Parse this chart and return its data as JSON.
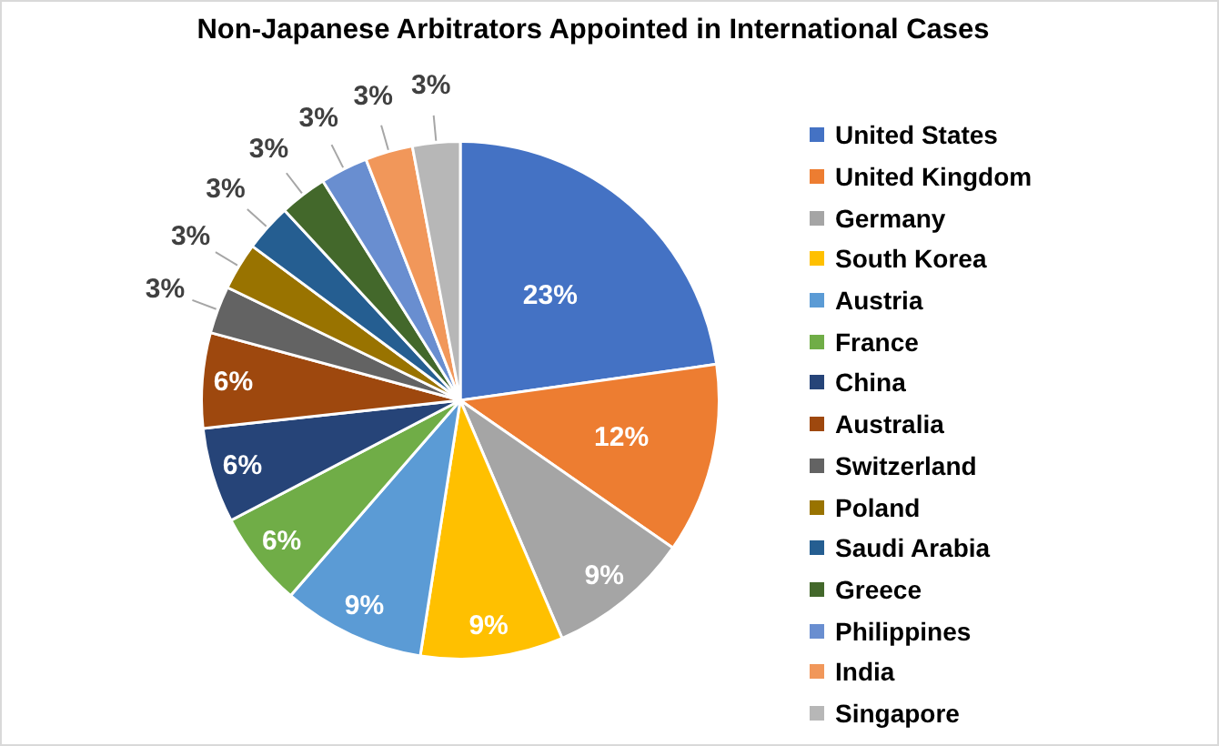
{
  "chart_data": {
    "type": "pie",
    "title": "Non-Japanese Arbitrators Appointed in International Cases",
    "categories": [
      "United States",
      "United Kingdom",
      "Germany",
      "South Korea",
      "Austria",
      "France",
      "China",
      "Australia",
      "Switzerland",
      "Poland",
      "Saudi Arabia",
      "Greece",
      "Philippines",
      "India",
      "Singapore"
    ],
    "values": [
      23,
      12,
      9,
      9,
      9,
      6,
      6,
      6,
      3,
      3,
      3,
      3,
      3,
      3,
      3
    ],
    "value_labels": [
      "23%",
      "12%",
      "9%",
      "9%",
      "9%",
      "6%",
      "6%",
      "6%",
      "3%",
      "3%",
      "3%",
      "3%",
      "3%",
      "3%",
      "3%"
    ],
    "colors": [
      "#4472c4",
      "#ed7d31",
      "#a5a5a5",
      "#ffc000",
      "#5b9bd5",
      "#70ad47",
      "#264478",
      "#9e480e",
      "#636363",
      "#997300",
      "#255e91",
      "#43682b",
      "#698ed0",
      "#f1975a",
      "#b7b7b7"
    ],
    "legend": "right"
  }
}
